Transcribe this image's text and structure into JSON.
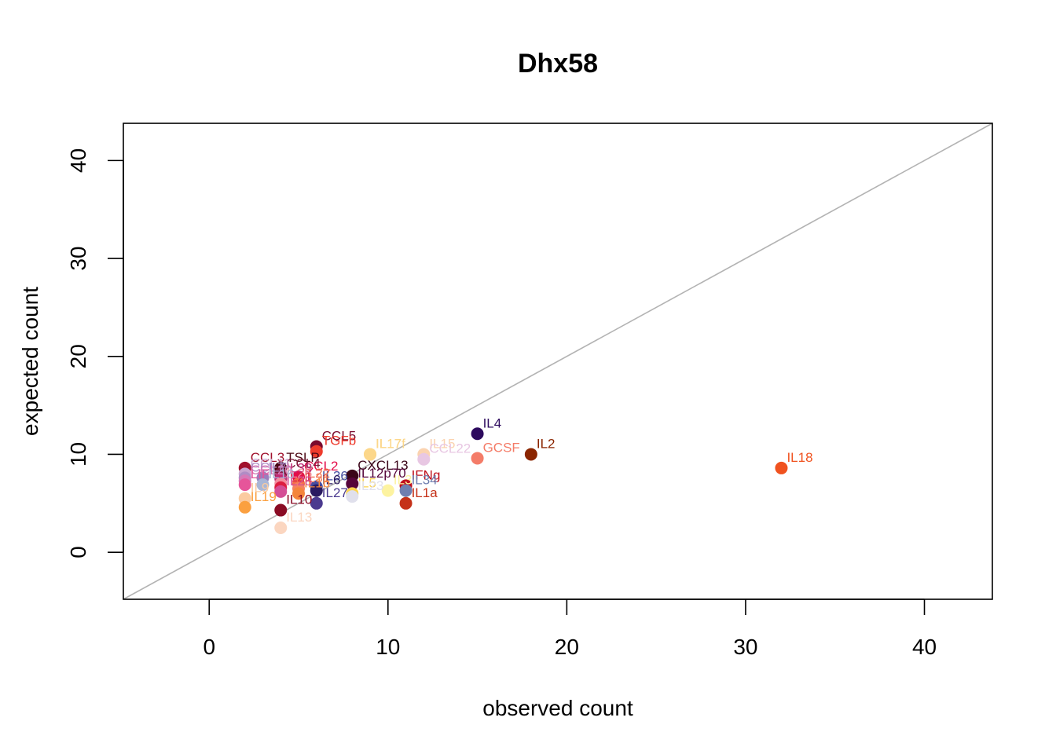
{
  "chart_data": {
    "type": "scatter",
    "title": "Dhx58",
    "xlabel": "observed count",
    "ylabel": "expected count",
    "xlim": [
      -4.8,
      43.8
    ],
    "ylim": [
      -4.8,
      43.8
    ],
    "xticks": [
      "0",
      "10",
      "20",
      "30",
      "40"
    ],
    "yticks": [
      "0",
      "10",
      "20",
      "30",
      "40"
    ],
    "reference_line": "y = x",
    "reference_line_color": "#b3b3b3",
    "grid": false,
    "points": [
      {
        "label": "IL18",
        "x": 32,
        "y": 8.6,
        "color": "#f0521f"
      },
      {
        "label": "IL2",
        "x": 18,
        "y": 10.0,
        "color": "#8b2500"
      },
      {
        "label": "IL4",
        "x": 15,
        "y": 12.1,
        "color": "#2d0a5e"
      },
      {
        "label": "GCSF",
        "x": 15,
        "y": 9.6,
        "color": "#f47c68"
      },
      {
        "label": "IL15",
        "x": 12,
        "y": 10.0,
        "color": "#fbd3b0"
      },
      {
        "label": "CCL22",
        "x": 12,
        "y": 9.5,
        "color": "#e8c7e3"
      },
      {
        "label": "IFNg",
        "x": 11,
        "y": 6.8,
        "color": "#c0101d"
      },
      {
        "label": "IL34",
        "x": 11,
        "y": 6.3,
        "color": "#6f7fb0"
      },
      {
        "label": "IL1a",
        "x": 11,
        "y": 5.0,
        "color": "#c53118"
      },
      {
        "label": "IL17",
        "x": 9,
        "y": 10.0,
        "color": "#fcc860"
      },
      {
        "label": "IL17f",
        "x": 9,
        "y": 10.0,
        "color": "#fcd78a"
      },
      {
        "label": "IL3",
        "x": 10,
        "y": 6.3,
        "color": "#fdf3a0"
      },
      {
        "label": "CXCL13",
        "x": 8,
        "y": 7.8,
        "color": "#3a0518"
      },
      {
        "label": "IL12p70",
        "x": 8,
        "y": 7.0,
        "color": "#55043a"
      },
      {
        "label": "IL5",
        "x": 8,
        "y": 6.0,
        "color": "#fcd34d"
      },
      {
        "label": "IL23",
        "x": 8,
        "y": 5.7,
        "color": "#e0e0ec"
      },
      {
        "label": "CCL5",
        "x": 6,
        "y": 10.8,
        "color": "#7a0a2d"
      },
      {
        "label": "TGFb",
        "x": 6,
        "y": 10.3,
        "color": "#ee3b2c"
      },
      {
        "label": "IL36",
        "x": 6,
        "y": 6.7,
        "color": "#464ea0"
      },
      {
        "label": "IL6",
        "x": 6,
        "y": 6.3,
        "color": "#2a1a60"
      },
      {
        "label": "IL27",
        "x": 6,
        "y": 5.0,
        "color": "#4b3a8f"
      },
      {
        "label": "CCL2",
        "x": 5,
        "y": 7.7,
        "color": "#e40d4a"
      },
      {
        "label": "IL22",
        "x": 5,
        "y": 7.0,
        "color": "#f26d4b"
      },
      {
        "label": "IL31",
        "x": 5,
        "y": 6.5,
        "color": "#f58060"
      },
      {
        "label": "IL1b",
        "x": 5,
        "y": 6.0,
        "color": "#f4863c"
      },
      {
        "label": "TSLP",
        "x": 4,
        "y": 8.6,
        "color": "#4a0612"
      },
      {
        "label": "CCL4",
        "x": 4,
        "y": 8.0,
        "color": "#7d1a3a"
      },
      {
        "label": "IL33",
        "x": 4,
        "y": 7.5,
        "color": "#c02a74"
      },
      {
        "label": "IL25",
        "x": 4,
        "y": 7.0,
        "color": "#f28e9e"
      },
      {
        "label": "IL21",
        "x": 4,
        "y": 6.6,
        "color": "#dd1e40"
      },
      {
        "label": "IL28",
        "x": 4,
        "y": 6.2,
        "color": "#d44f96"
      },
      {
        "label": "IL10",
        "x": 4,
        "y": 4.3,
        "color": "#8a0b24"
      },
      {
        "label": "IL13",
        "x": 4,
        "y": 2.5,
        "color": "#fbd6c0"
      },
      {
        "label": "CCL3",
        "x": 2,
        "y": 8.6,
        "color": "#a0102c"
      },
      {
        "label": "CCL11",
        "x": 2,
        "y": 8.0,
        "color": "#c9a5d0"
      },
      {
        "label": "CCL7",
        "x": 2,
        "y": 7.6,
        "color": "#b08cc5"
      },
      {
        "label": "CCL20",
        "x": 2,
        "y": 7.3,
        "color": "#d57ab8"
      },
      {
        "label": "IL7",
        "x": 3,
        "y": 7.6,
        "color": "#9a7ebd"
      },
      {
        "label": "IL16",
        "x": 3,
        "y": 6.9,
        "color": "#a8b6d6"
      },
      {
        "label": "LIF",
        "x": 2,
        "y": 6.9,
        "color": "#e6559a"
      },
      {
        "label": "IL9",
        "x": 2,
        "y": 5.5,
        "color": "#fbcba0"
      },
      {
        "label": "IL19",
        "x": 2,
        "y": 4.6,
        "color": "#fba040"
      }
    ]
  }
}
